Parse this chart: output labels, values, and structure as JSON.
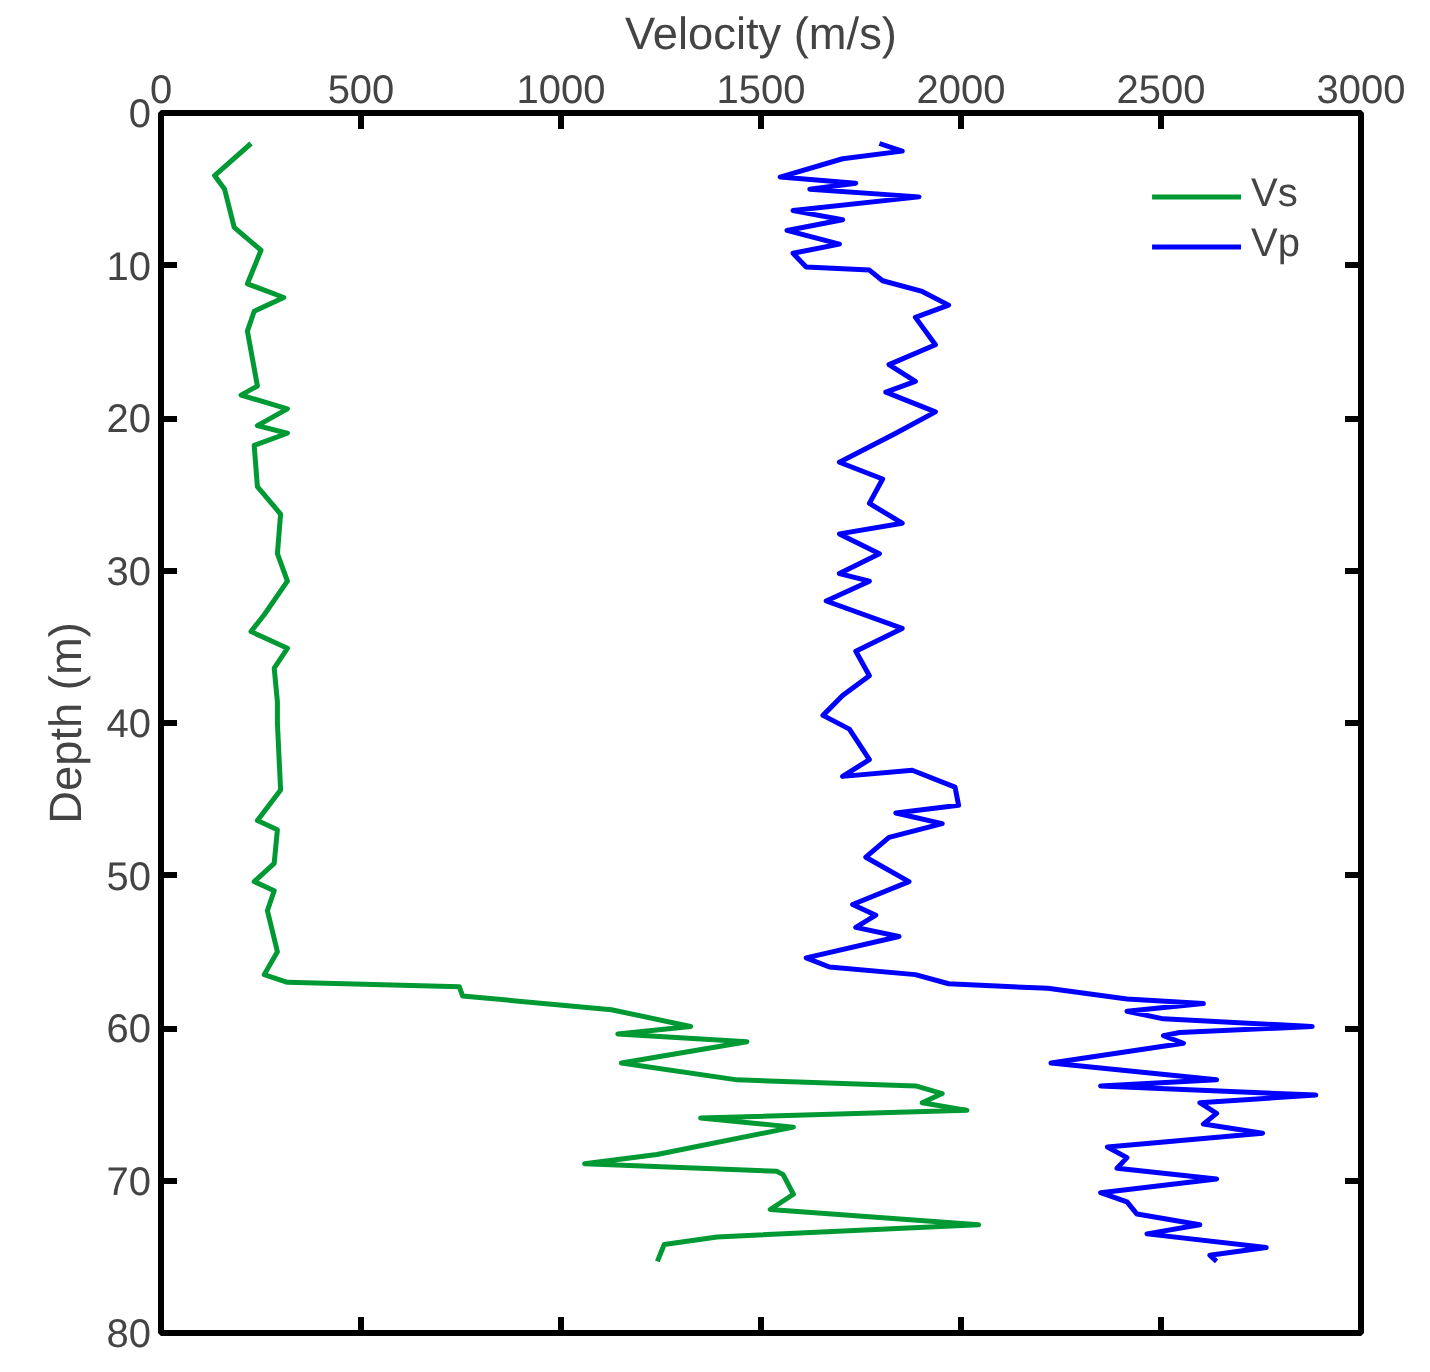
{
  "chart_data": {
    "type": "line",
    "xlabel": "Velocity (m/s)",
    "ylabel": "Depth (m)",
    "xlim": [
      0,
      3000
    ],
    "xticks": [
      0,
      500,
      1000,
      1500,
      2000,
      2500,
      3000
    ],
    "ylim": [
      80,
      0
    ],
    "yticks": [
      0,
      10,
      20,
      30,
      40,
      50,
      60,
      70,
      80
    ],
    "grid": false,
    "legend": "top right",
    "line_style": "solid",
    "marker": "none",
    "series": [
      {
        "name": "Vs",
        "color": "#009933",
        "x": [
          225,
          134,
          159,
          183,
          250,
          216,
          307,
          233,
          216,
          241,
          200,
          316,
          241,
          316,
          233,
          241,
          299,
          291,
          316,
          258,
          225,
          316,
          283,
          291,
          291,
          299,
          241,
          291,
          283,
          233,
          283,
          266,
          291,
          258,
          316,
          746,
          754,
          1126,
          1324,
          1142,
          1465,
          1151,
          1440,
          1887,
          1953,
          1903,
          2015,
          1349,
          1581,
          1240,
          1059,
          1539,
          1555,
          1581,
          1523,
          2044,
          1390,
          1258,
          1241
        ],
        "values": [
          2.0,
          4.1,
          5.0,
          7.5,
          9.0,
          11.2,
          12.1,
          13.0,
          14.3,
          17.9,
          18.5,
          19.4,
          20.5,
          21.0,
          21.8,
          24.5,
          26.3,
          28.9,
          30.7,
          32.9,
          34.0,
          35.1,
          36.4,
          38.6,
          40.0,
          44.4,
          46.4,
          47.0,
          49.2,
          50.4,
          51.0,
          52.3,
          55.0,
          56.5,
          57.0,
          57.3,
          57.9,
          58.8,
          59.9,
          60.4,
          60.9,
          62.3,
          63.4,
          63.8,
          64.3,
          64.9,
          65.4,
          65.9,
          66.5,
          68.3,
          68.9,
          69.4,
          69.6,
          70.9,
          71.9,
          72.9,
          73.7,
          74.2,
          75.3
        ]
      },
      {
        "name": "Vp",
        "color": "#0000ff",
        "x": [
          1796,
          1853,
          1704,
          1548,
          1737,
          1622,
          1895,
          1580,
          1704,
          1565,
          1696,
          1580,
          1613,
          1771,
          1804,
          1903,
          1969,
          1886,
          1936,
          1820,
          1886,
          1812,
          1936,
          1837,
          1696,
          1804,
          1771,
          1853,
          1696,
          1796,
          1696,
          1771,
          1663,
          1853,
          1737,
          1771,
          1704,
          1655,
          1721,
          1771,
          1704,
          1878,
          1985,
          1994,
          1837,
          1953,
          1820,
          1762,
          1870,
          1729,
          1787,
          1737,
          1845,
          1613,
          1671,
          1886,
          1969,
          2217,
          2415,
          2606,
          2415,
          2506,
          2878,
          2547,
          2506,
          2556,
          2225,
          2639,
          2349,
          2887,
          2597,
          2639,
          2606,
          2754,
          2366,
          2415,
          2390,
          2639,
          2349,
          2415,
          2440,
          2597,
          2465,
          2763,
          2622,
          2639
        ],
        "values": [
          2.0,
          2.5,
          3.0,
          4.2,
          4.6,
          5.0,
          5.5,
          6.4,
          7.0,
          7.7,
          8.6,
          9.2,
          10.1,
          10.3,
          11.0,
          11.7,
          12.6,
          13.4,
          15.2,
          16.5,
          17.6,
          18.3,
          19.6,
          21.0,
          22.9,
          24.0,
          25.6,
          26.9,
          27.6,
          28.9,
          30.2,
          30.7,
          32.0,
          33.8,
          35.3,
          36.9,
          38.2,
          39.5,
          40.4,
          42.4,
          43.5,
          43.1,
          44.2,
          45.4,
          45.9,
          46.6,
          47.5,
          48.8,
          50.4,
          51.9,
          52.6,
          53.4,
          54.0,
          55.4,
          56.0,
          56.5,
          57.1,
          57.4,
          58.1,
          58.4,
          58.9,
          59.4,
          59.9,
          60.3,
          60.5,
          61.0,
          62.3,
          63.4,
          63.8,
          64.4,
          64.9,
          65.6,
          66.3,
          66.9,
          67.8,
          68.5,
          69.2,
          69.9,
          70.8,
          71.4,
          72.2,
          72.9,
          73.5,
          74.4,
          74.9,
          75.3
        ]
      }
    ]
  }
}
